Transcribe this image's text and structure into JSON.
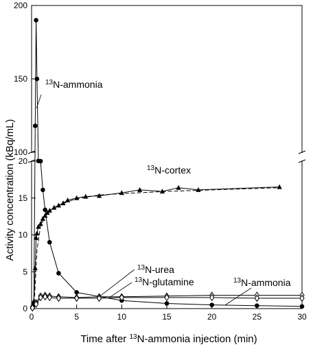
{
  "chart_data": {
    "type": "line",
    "title": "",
    "xlabel": "Time after {13}N-ammonia injection (min)",
    "ylabel": "Activity concentration (kBq/mL)",
    "xlim": [
      0,
      30
    ],
    "y_segments": [
      {
        "range": [
          0,
          20
        ],
        "ticks": [
          0,
          5,
          10,
          15,
          20
        ]
      },
      {
        "range": [
          100,
          200
        ],
        "ticks": [
          100,
          150,
          200
        ]
      }
    ],
    "x_ticks": [
      0,
      5,
      10,
      15,
      20,
      25,
      30
    ],
    "axis_break": true,
    "grid": false,
    "legend": "none",
    "series": [
      {
        "name": "13N-ammonia",
        "marker": "circle",
        "line": "solid",
        "x": [
          0.1,
          0.25,
          0.4,
          0.5,
          0.6,
          0.75,
          1.0,
          1.25,
          1.5,
          2.0,
          3.0,
          5.0,
          10.0,
          15.0,
          20.0,
          25.0,
          30.0
        ],
        "y": [
          0.2,
          0.5,
          118,
          190,
          150,
          22,
          20,
          16.1,
          13.4,
          9.0,
          4.8,
          2.2,
          1.1,
          0.7,
          0.5,
          0.4,
          0.3
        ]
      },
      {
        "name": "13N-cortex",
        "marker": "triangle",
        "line": "solid",
        "x": [
          0.1,
          0.25,
          0.4,
          0.5,
          0.6,
          0.75,
          1.0,
          1.25,
          1.5,
          1.75,
          2.0,
          2.5,
          3.0,
          3.5,
          4.0,
          5.0,
          6.0,
          7.5,
          10.0,
          12.0,
          14.5,
          16.3,
          18.5,
          27.5
        ],
        "y": [
          0.2,
          1.0,
          5.5,
          9.6,
          10.2,
          11.1,
          11.5,
          12.2,
          12.6,
          13.0,
          13.3,
          13.7,
          14.0,
          14.3,
          14.7,
          15.0,
          15.2,
          15.3,
          15.7,
          16.1,
          15.9,
          16.4,
          16.1,
          16.5
        ]
      },
      {
        "name": "13N-cortex fit",
        "marker": "none",
        "line": "dashed",
        "x": [
          0.3,
          0.6,
          1.0,
          1.5,
          2.0,
          3.0,
          4.0,
          5.0,
          7.5,
          10.0,
          15.0,
          20.0,
          27.5
        ],
        "y": [
          0.8,
          8.0,
          11.2,
          12.5,
          13.2,
          14.0,
          14.5,
          14.9,
          15.4,
          15.6,
          15.9,
          16.1,
          16.4
        ]
      },
      {
        "name": "13N-urea",
        "marker": "diamond",
        "line": "solid",
        "x": [
          0.1,
          0.5,
          1.0,
          1.5,
          2.0,
          3.0,
          5.0,
          7.5,
          10.0,
          15.0,
          20.0,
          25.0,
          30.0
        ],
        "y": [
          0.1,
          0.8,
          1.7,
          1.8,
          1.7,
          1.6,
          1.5,
          1.6,
          1.6,
          1.7,
          1.8,
          1.8,
          1.8
        ]
      },
      {
        "name": "13N-glutamine",
        "marker": "diamond",
        "line": "solid",
        "x": [
          0.1,
          0.5,
          1.0,
          1.5,
          2.0,
          3.0,
          5.0,
          7.5,
          10.0,
          15.0,
          20.0,
          25.0,
          30.0
        ],
        "y": [
          0.1,
          0.6,
          1.5,
          1.6,
          1.5,
          1.4,
          1.4,
          1.4,
          1.5,
          1.5,
          1.5,
          1.4,
          1.4
        ]
      }
    ],
    "annotations": [
      {
        "id": "ammonia-peak",
        "text": "{13}N-ammonia",
        "points_to": {
          "x": 0.55,
          "y": 130
        }
      },
      {
        "id": "cortex",
        "text": "{13}N-cortex"
      },
      {
        "id": "urea",
        "text": "{13}N-urea",
        "points_to": {
          "x": 7.5,
          "y": 1.6
        }
      },
      {
        "id": "glutamine",
        "text": "{13}N-glutamine",
        "points_to": {
          "x": 8.5,
          "y": 1.4
        }
      },
      {
        "id": "ammonia-tail",
        "text": "{13}N-ammonia",
        "points_to": {
          "x": 21.5,
          "y": 0.5
        }
      }
    ]
  }
}
